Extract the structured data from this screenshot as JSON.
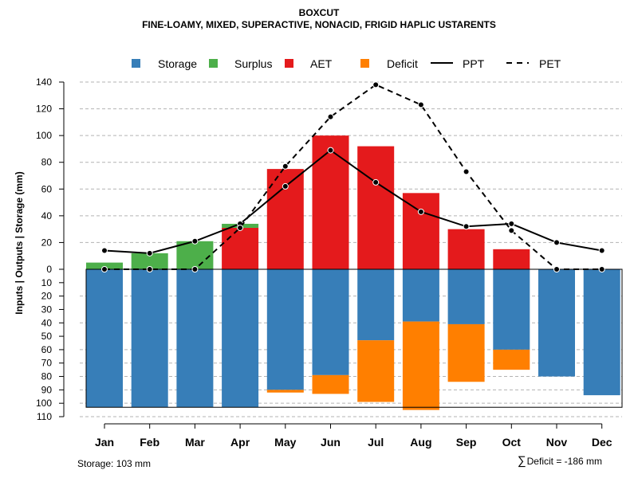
{
  "chart_data": {
    "type": "bar",
    "title": "BOXCUT",
    "subtitle": "FINE-LOAMY, MIXED, SUPERACTIVE, NONACID, FRIGID HAPLIC USTARENTS",
    "ylabel": "Inputs | Outputs | Storage    (mm)",
    "categories": [
      "Jan",
      "Feb",
      "Mar",
      "Apr",
      "May",
      "Jun",
      "Jul",
      "Aug",
      "Sep",
      "Oct",
      "Nov",
      "Dec"
    ],
    "y_upper_ticks": [
      "0",
      "20",
      "40",
      "60",
      "80",
      "100",
      "120",
      "140"
    ],
    "y_lower_ticks": [
      "10",
      "20",
      "30",
      "40",
      "50",
      "60",
      "70",
      "80",
      "90",
      "100",
      "110"
    ],
    "ylim_upper": [
      0,
      140
    ],
    "ylim_lower": [
      0,
      110
    ],
    "legend": [
      "Storage",
      "Surplus",
      "AET",
      "Deficit",
      "PPT",
      "PET"
    ],
    "legend_position": "top",
    "colors": {
      "storage": "#377eb8",
      "surplus": "#4daf4a",
      "aet": "#e41a1c",
      "deficit": "#ff7f00",
      "line": "#000000",
      "grid": "#b3b3b3"
    },
    "series_upper": [
      {
        "name": "Surplus",
        "values": [
          5,
          12,
          21,
          34,
          0,
          0,
          0,
          0,
          0,
          0,
          0,
          0
        ]
      },
      {
        "name": "AET",
        "values": [
          0,
          0,
          0,
          31,
          75,
          100,
          92,
          57,
          30,
          15,
          0,
          0
        ]
      }
    ],
    "series_lower": [
      {
        "name": "Storage",
        "values": [
          103,
          103,
          103,
          103,
          90,
          79,
          53,
          39,
          41,
          60,
          80,
          94
        ]
      },
      {
        "name": "Deficit",
        "values": [
          0,
          0,
          0,
          0,
          2,
          14,
          46,
          66,
          43,
          15,
          0,
          0
        ]
      }
    ],
    "lines": [
      {
        "name": "PPT",
        "style": "solid",
        "values": [
          14,
          12,
          21,
          34,
          62,
          89,
          65,
          43,
          32,
          34,
          20,
          14
        ]
      },
      {
        "name": "PET",
        "style": "dashed",
        "values": [
          0,
          0,
          0,
          31,
          77,
          114,
          138,
          123,
          73,
          29,
          0,
          0
        ]
      }
    ],
    "storage_capacity": 103
  },
  "footer": {
    "storage_text": "Storage: 103 mm",
    "sigma_symbol": "∑",
    "deficit_text": "Deficit = -186 mm"
  }
}
